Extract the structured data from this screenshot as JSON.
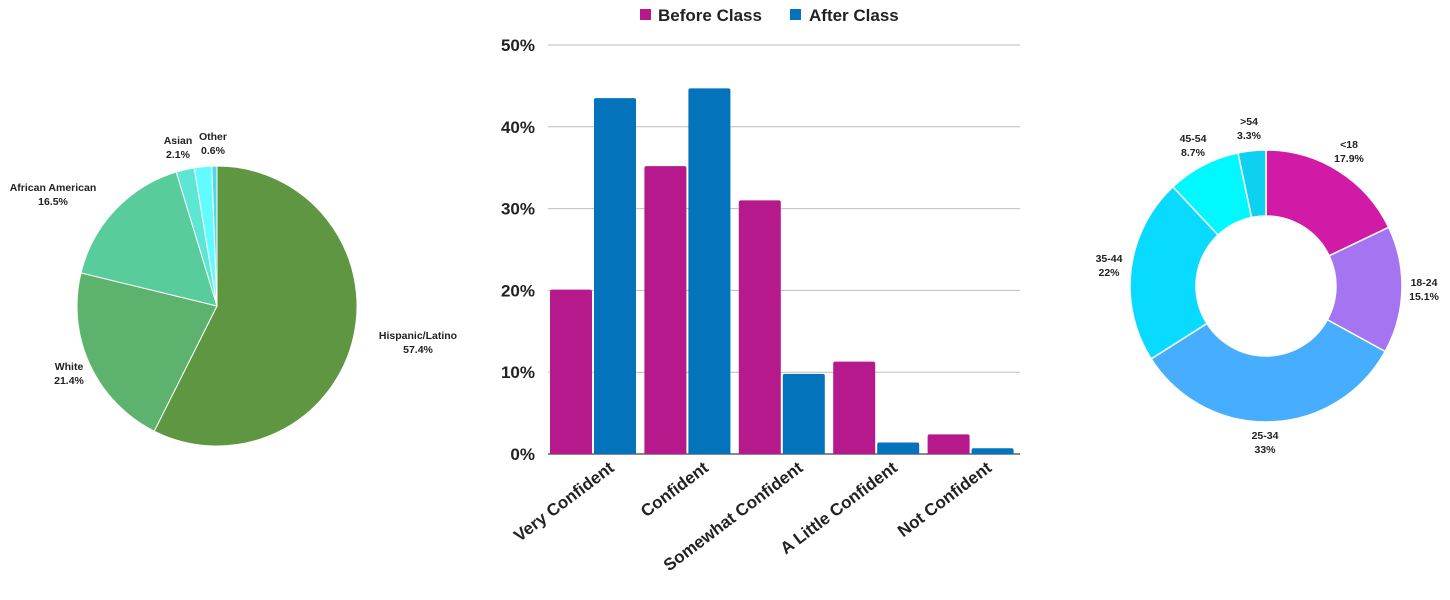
{
  "chart_data": [
    {
      "type": "pie",
      "title": "",
      "slices": [
        {
          "name": "Hispanic/Latino",
          "value": 57.4,
          "label": "57.4%",
          "color": "#5f9641"
        },
        {
          "name": "White",
          "value": 21.4,
          "label": "21.4%",
          "color": "#5db36e"
        },
        {
          "name": "African American",
          "value": 16.5,
          "label": "16.5%",
          "color": "#58cc9a"
        },
        {
          "name": "Asian",
          "value": 2.1,
          "label": "2.1%",
          "color": "#5ee6d4"
        },
        {
          "name": "Other",
          "value": 0.6,
          "label": "0.6%",
          "color": "#4fd8f0"
        }
      ],
      "gap_slice": {
        "value": 2.0,
        "color": "#62fbff"
      }
    },
    {
      "type": "bar",
      "title": "",
      "categories": [
        "Very Confident",
        "Confident",
        "Somewhat Confident",
        "A Little Confident",
        "Not Confident"
      ],
      "series": [
        {
          "name": "Before Class",
          "color": "#b5198b",
          "values": [
            20.1,
            35.2,
            31.0,
            11.3,
            2.4
          ]
        },
        {
          "name": "After Class",
          "color": "#0373bb",
          "values": [
            43.5,
            44.7,
            9.8,
            1.4,
            0.7
          ]
        }
      ],
      "ylim": [
        0,
        50
      ],
      "yticks": [
        "0%",
        "10%",
        "20%",
        "30%",
        "40%",
        "50%"
      ],
      "grid": true,
      "legend": "top"
    },
    {
      "type": "pie",
      "subtype": "donut",
      "title": "",
      "slices": [
        {
          "name": "<18",
          "value": 17.9,
          "label": "17.9%",
          "color": "#d11ba6"
        },
        {
          "name": "18-24",
          "value": 15.1,
          "label": "15.1%",
          "color": "#a574f1"
        },
        {
          "name": "25-34",
          "value": 33.0,
          "label": "33%",
          "color": "#47aeff"
        },
        {
          "name": "35-44",
          "value": 22.0,
          "label": "22%",
          "color": "#09daff"
        },
        {
          "name": "45-54",
          "value": 8.7,
          "label": "8.7%",
          "color": "#00f9ff"
        },
        {
          "name": ">54",
          "value": 3.3,
          "label": "3.3%",
          "color": "#0ed0f0"
        }
      ]
    }
  ]
}
